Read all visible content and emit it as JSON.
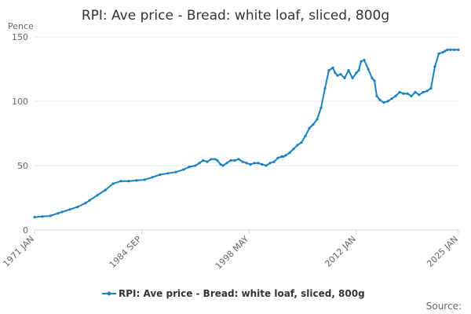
{
  "chart_data": {
    "type": "line",
    "title": "RPI: Ave price - Bread: white loaf, sliced, 800g",
    "ylabel": "Pence",
    "xlabel": "",
    "ylim": [
      0,
      150
    ],
    "yticks": [
      0,
      50,
      100,
      150
    ],
    "x_range": [
      1971.0,
      2025.0
    ],
    "xtick_labels": [
      {
        "label": "1971 JAN",
        "x": 1971.0
      },
      {
        "label": "1984 SEP",
        "x": 1984.67
      },
      {
        "label": "1998 MAY",
        "x": 1998.33
      },
      {
        "label": "2012 JAN",
        "x": 2012.0
      },
      {
        "label": "2025 JAN",
        "x": 2025.0
      }
    ],
    "grid": true,
    "legend_position": "bottom-center",
    "color": "#1a80c0",
    "series": [
      {
        "name": "RPI: Ave price - Bread: white loaf, sliced, 800g",
        "x": [
          1971.0,
          1972.0,
          1973.0,
          1974.0,
          1974.5,
          1975.5,
          1976.5,
          1977.5,
          1978.0,
          1979.0,
          1980.0,
          1981.0,
          1982.0,
          1983.0,
          1984.0,
          1985.0,
          1986.0,
          1987.0,
          1988.0,
          1989.0,
          1990.0,
          1990.7,
          1991.5,
          1992.0,
          1992.5,
          1993.0,
          1993.5,
          1994.0,
          1994.3,
          1994.7,
          1995.0,
          1995.5,
          1996.0,
          1996.5,
          1997.0,
          1997.5,
          1998.0,
          1998.5,
          1999.0,
          1999.5,
          2000.0,
          2000.5,
          2001.0,
          2001.5,
          2002.0,
          2002.5,
          2002.7,
          2003.0,
          2003.5,
          2004.0,
          2004.5,
          2005.0,
          2005.5,
          2006.0,
          2006.5,
          2007.0,
          2007.5,
          2008.0,
          2008.5,
          2009.0,
          2009.3,
          2009.6,
          2010.0,
          2010.5,
          2011.0,
          2011.5,
          2012.0,
          2012.3,
          2012.6,
          2013.0,
          2013.5,
          2014.0,
          2014.3,
          2014.6,
          2015.0,
          2015.5,
          2016.0,
          2016.5,
          2017.0,
          2017.5,
          2018.0,
          2018.5,
          2019.0,
          2019.5,
          2020.0,
          2020.5,
          2021.0,
          2021.5,
          2022.0,
          2022.5,
          2023.0,
          2023.3,
          2023.6,
          2024.0,
          2024.5,
          2025.0
        ],
        "values": [
          10,
          10.5,
          11,
          13,
          14,
          16,
          18,
          21,
          23,
          27,
          31,
          36,
          38,
          38,
          38.5,
          39,
          41,
          43,
          44,
          45,
          47,
          49,
          50,
          52,
          54,
          53,
          55,
          55,
          54,
          51,
          50,
          52,
          54,
          54,
          55,
          53,
          52,
          51,
          52,
          52,
          51,
          50,
          52,
          53,
          56,
          57,
          57,
          58,
          60,
          63,
          66,
          68,
          73,
          79,
          82,
          86,
          95,
          110,
          124,
          126,
          122,
          120,
          121,
          118,
          124,
          118,
          122,
          124,
          131,
          132,
          125,
          118,
          116,
          104,
          101,
          99,
          100,
          102,
          104,
          107,
          106,
          106,
          104,
          107,
          105,
          107,
          108,
          110,
          127,
          137,
          138,
          139,
          140,
          140,
          140,
          140
        ]
      }
    ],
    "source_label": "Source:"
  }
}
